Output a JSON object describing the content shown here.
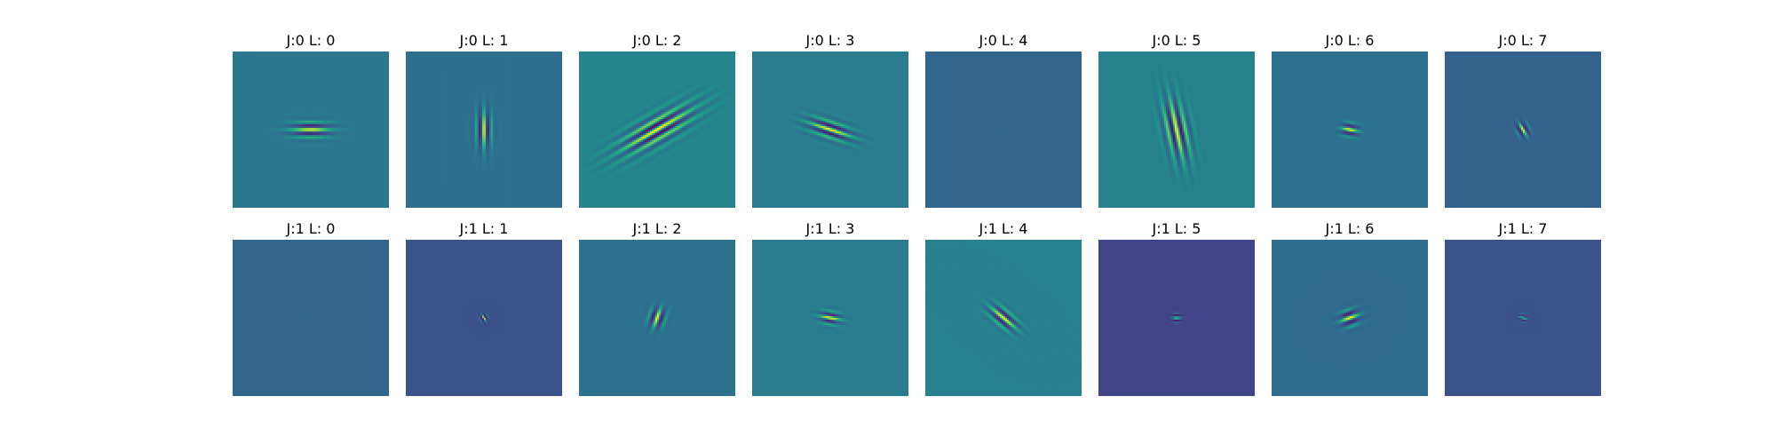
{
  "chart_data": {
    "type": "heatmap",
    "colormap": "viridis",
    "axes_visible": false,
    "rows": [
      {
        "panels": [
          {
            "title": "J:0 L: 0",
            "background": "#2a788e",
            "orientation_deg": 90,
            "scale": 1.0,
            "elongation": 2.4,
            "wavelength": 9,
            "amplitude": 1.0
          },
          {
            "title": "J:0 L: 1",
            "background": "#2d708e",
            "orientation_deg": 0,
            "scale": 1.0,
            "elongation": 2.4,
            "wavelength": 9,
            "amplitude": 1.0
          },
          {
            "title": "J:0 L: 2",
            "background": "#25858e",
            "orientation_deg": 60,
            "scale": 1.7,
            "elongation": 3.0,
            "wavelength": 10,
            "amplitude": 1.0
          },
          {
            "title": "J:0 L: 3",
            "background": "#287c8e",
            "orientation_deg": 108,
            "scale": 1.1,
            "elongation": 2.6,
            "wavelength": 9,
            "amplitude": 1.0
          },
          {
            "title": "J:0 L: 4",
            "background": "#31668e",
            "orientation_deg": 0,
            "scale": 0.35,
            "elongation": 1.0,
            "wavelength": 4,
            "amplitude": 1.0
          },
          {
            "title": "J:0 L: 5",
            "background": "#26828e",
            "orientation_deg": 168,
            "scale": 1.5,
            "elongation": 2.6,
            "wavelength": 10,
            "amplitude": 1.0
          },
          {
            "title": "J:0 L: 6",
            "background": "#2c728e",
            "orientation_deg": 100,
            "scale": 0.8,
            "elongation": 1.3,
            "wavelength": 9,
            "amplitude": 1.0
          },
          {
            "title": "J:0 L: 7",
            "background": "#33638d",
            "orientation_deg": 150,
            "scale": 0.7,
            "elongation": 1.3,
            "wavelength": 8,
            "amplitude": 1.0
          }
        ]
      },
      {
        "panels": [
          {
            "title": "J:1 L: 0",
            "background": "#31668e",
            "orientation_deg": 90,
            "scale": 0.35,
            "elongation": 1.0,
            "wavelength": 4,
            "amplitude": 1.0
          },
          {
            "title": "J:1 L: 1",
            "background": "#3b528b",
            "orientation_deg": 150,
            "scale": 0.45,
            "elongation": 1.0,
            "wavelength": 5,
            "amplitude": 1.0
          },
          {
            "title": "J:1 L: 2",
            "background": "#2c718e",
            "orientation_deg": 20,
            "scale": 0.95,
            "elongation": 1.3,
            "wavelength": 10,
            "amplitude": 1.0
          },
          {
            "title": "J:1 L: 3",
            "background": "#287c8e",
            "orientation_deg": 100,
            "scale": 0.8,
            "elongation": 1.6,
            "wavelength": 8,
            "amplitude": 1.0
          },
          {
            "title": "J:1 L: 4",
            "background": "#277f8e",
            "orientation_deg": 130,
            "scale": 1.0,
            "elongation": 2.0,
            "wavelength": 9,
            "amplitude": 1.0
          },
          {
            "title": "J:1 L: 5",
            "background": "#414487",
            "orientation_deg": 90,
            "scale": 0.5,
            "elongation": 1.0,
            "wavelength": 6,
            "amplitude": 1.0
          },
          {
            "title": "J:1 L: 6",
            "background": "#2f6c8e",
            "orientation_deg": 70,
            "scale": 1.0,
            "elongation": 1.2,
            "wavelength": 10,
            "amplitude": 1.0
          },
          {
            "title": "J:1 L: 7",
            "background": "#3b528b",
            "orientation_deg": 100,
            "scale": 0.4,
            "elongation": 1.0,
            "wavelength": 5,
            "amplitude": 1.0
          }
        ]
      }
    ]
  }
}
